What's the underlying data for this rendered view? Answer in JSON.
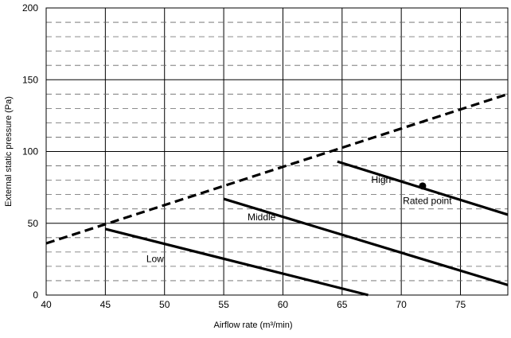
{
  "chart_data": {
    "type": "line",
    "xlabel": "Airflow rate (m³/min)",
    "ylabel": "External static pressure (Pa)",
    "xlim": [
      40,
      79
    ],
    "ylim": [
      0,
      200
    ],
    "x_ticks": [
      "40",
      "45",
      "50",
      "55",
      "60",
      "65",
      "70",
      "75"
    ],
    "y_ticks": [
      "0",
      "50",
      "100",
      "150",
      "200"
    ],
    "grid": true,
    "series": [
      {
        "name": "High",
        "style": "solid",
        "x": [
          64.6,
          79
        ],
        "y": [
          93,
          56
        ]
      },
      {
        "name": "Middle",
        "style": "solid",
        "x": [
          55,
          79
        ],
        "y": [
          67,
          7
        ]
      },
      {
        "name": "Low",
        "style": "solid",
        "x": [
          45,
          67.2
        ],
        "y": [
          46,
          0
        ]
      },
      {
        "name": "",
        "style": "dashed",
        "x": [
          40,
          79
        ],
        "y": [
          36,
          140
        ]
      }
    ],
    "points": [
      {
        "label": "Rated point",
        "x": 71.8,
        "y": 76
      }
    ]
  }
}
